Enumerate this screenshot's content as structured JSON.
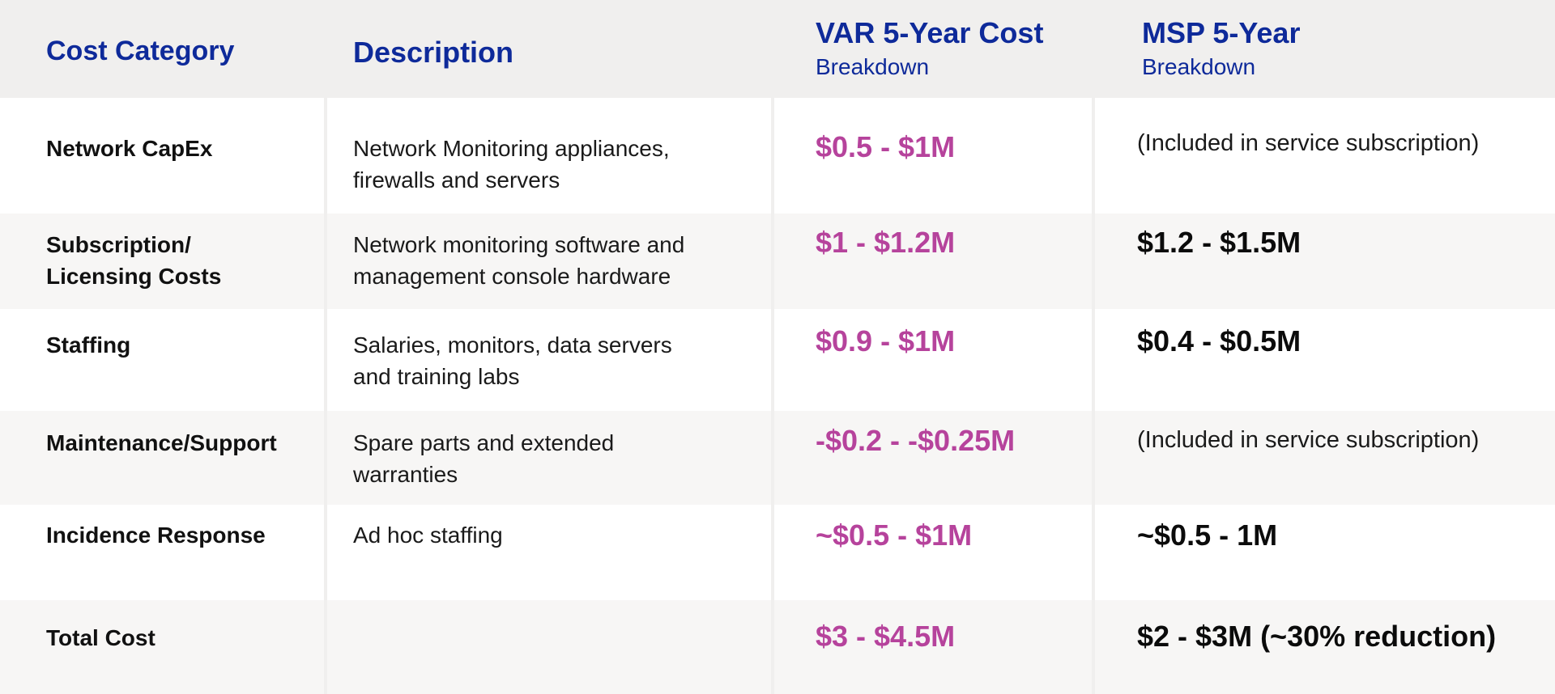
{
  "headers": {
    "category": "Cost Category",
    "description": "Description",
    "var_title": "VAR 5-Year Cost",
    "var_sub": "Breakdown",
    "msp_title": "MSP 5-Year",
    "msp_sub": "Breakdown"
  },
  "rows": [
    {
      "category": [
        "Network CapEx"
      ],
      "description": [
        "Network Monitoring appliances,",
        "firewalls and servers"
      ],
      "var_cost": "$0.5 - $1M",
      "msp_cost": "(Included in service subscription)"
    },
    {
      "category": [
        "Subscription/",
        "Licensing Costs"
      ],
      "description": [
        "Network monitoring software and",
        "management console hardware"
      ],
      "var_cost": "$1 - $1.2M",
      "msp_cost": "$1.2 - $1.5M"
    },
    {
      "category": [
        "Staffing"
      ],
      "description": [
        "Salaries, monitors, data servers",
        "and training labs"
      ],
      "var_cost": "$0.9 - $1M",
      "msp_cost": "$0.4 - $0.5M"
    },
    {
      "category": [
        "Maintenance/Support"
      ],
      "description": [
        "Spare parts and extended",
        "warranties"
      ],
      "var_cost": "-$0.2 - -$0.25M",
      "msp_cost": "(Included in service subscription)"
    },
    {
      "category": [
        "Incidence Response"
      ],
      "description": [
        "Ad hoc staffing"
      ],
      "var_cost": "~$0.5 - $1M",
      "msp_cost": "~$0.5 - 1M"
    },
    {
      "category": [
        "Total Cost"
      ],
      "description": [],
      "var_cost": "$3 - $4.5M",
      "msp_cost": "$2 - $3M (~30% reduction)"
    }
  ],
  "colors": {
    "header_text": "#0e2a9a",
    "var_text": "#b6439c",
    "msp_text": "#0b0b0b",
    "row_white": "#ffffff",
    "row_grey": "#f7f6f5",
    "header_bg": "#f0efee"
  }
}
